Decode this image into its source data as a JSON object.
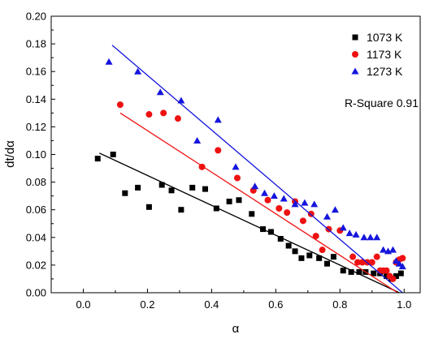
{
  "chart_data": {
    "type": "scatter",
    "xlabel": "α",
    "ylabel": "dt/dα",
    "xlim": [
      -0.1,
      1.05
    ],
    "ylim": [
      0,
      0.2
    ],
    "xticks": [
      0.0,
      0.2,
      0.4,
      0.6,
      0.8,
      1.0
    ],
    "xtick_labels": [
      "0.0",
      "0.2",
      "0.4",
      "0.6",
      "0.8",
      "1.0"
    ],
    "yticks": [
      0.0,
      0.02,
      0.04,
      0.06,
      0.08,
      0.1,
      0.12,
      0.14,
      0.16,
      0.18,
      0.2
    ],
    "ytick_labels": [
      "0.00",
      "0.02",
      "0.04",
      "0.06",
      "0.08",
      "0.10",
      "0.12",
      "0.14",
      "0.16",
      "0.18",
      "0.20"
    ],
    "grid": false,
    "legend_position": "top-right",
    "annotation": "R-Square 0.91",
    "series": [
      {
        "name": "1073 K",
        "marker": "square",
        "color": "#000000",
        "points": [
          [
            0.045,
            0.097
          ],
          [
            0.093,
            0.1
          ],
          [
            0.13,
            0.072
          ],
          [
            0.17,
            0.076
          ],
          [
            0.205,
            0.062
          ],
          [
            0.245,
            0.078
          ],
          [
            0.275,
            0.074
          ],
          [
            0.305,
            0.06
          ],
          [
            0.34,
            0.076
          ],
          [
            0.38,
            0.075
          ],
          [
            0.415,
            0.061
          ],
          [
            0.455,
            0.066
          ],
          [
            0.485,
            0.067
          ],
          [
            0.525,
            0.057
          ],
          [
            0.56,
            0.046
          ],
          [
            0.585,
            0.044
          ],
          [
            0.615,
            0.039
          ],
          [
            0.64,
            0.034
          ],
          [
            0.66,
            0.03
          ],
          [
            0.68,
            0.025
          ],
          [
            0.705,
            0.027
          ],
          [
            0.735,
            0.025
          ],
          [
            0.76,
            0.021
          ],
          [
            0.78,
            0.026
          ],
          [
            0.81,
            0.016
          ],
          [
            0.835,
            0.015
          ],
          [
            0.86,
            0.015
          ],
          [
            0.88,
            0.015
          ],
          [
            0.905,
            0.014
          ],
          [
            0.925,
            0.014
          ],
          [
            0.945,
            0.012
          ],
          [
            0.96,
            0.01
          ],
          [
            0.975,
            0.012
          ],
          [
            0.99,
            0.014
          ]
        ],
        "fit": [
          [
            0.05,
            0.101
          ],
          [
            0.985,
            0.0
          ]
        ]
      },
      {
        "name": "1173 K",
        "marker": "circle",
        "color": "#ee1111",
        "points": [
          [
            0.115,
            0.136
          ],
          [
            0.205,
            0.129
          ],
          [
            0.25,
            0.13
          ],
          [
            0.295,
            0.126
          ],
          [
            0.37,
            0.091
          ],
          [
            0.42,
            0.103
          ],
          [
            0.48,
            0.083
          ],
          [
            0.53,
            0.074
          ],
          [
            0.575,
            0.067
          ],
          [
            0.61,
            0.061
          ],
          [
            0.635,
            0.058
          ],
          [
            0.66,
            0.066
          ],
          [
            0.685,
            0.052
          ],
          [
            0.71,
            0.057
          ],
          [
            0.725,
            0.041
          ],
          [
            0.745,
            0.031
          ],
          [
            0.765,
            0.046
          ],
          [
            0.8,
            0.045
          ],
          [
            0.84,
            0.026
          ],
          [
            0.855,
            0.022
          ],
          [
            0.87,
            0.022
          ],
          [
            0.885,
            0.022
          ],
          [
            0.9,
            0.022
          ],
          [
            0.915,
            0.026
          ],
          [
            0.925,
            0.016
          ],
          [
            0.935,
            0.016
          ],
          [
            0.945,
            0.016
          ],
          [
            0.955,
            0.012
          ],
          [
            0.965,
            0.01
          ],
          [
            0.975,
            0.022
          ],
          [
            0.985,
            0.024
          ],
          [
            0.995,
            0.025
          ]
        ],
        "fit": [
          [
            0.115,
            0.13
          ],
          [
            0.98,
            0.0
          ]
        ]
      },
      {
        "name": "1273 K",
        "marker": "triangle",
        "color": "#1515dd",
        "points": [
          [
            0.08,
            0.167
          ],
          [
            0.17,
            0.16
          ],
          [
            0.24,
            0.145
          ],
          [
            0.305,
            0.139
          ],
          [
            0.355,
            0.11
          ],
          [
            0.42,
            0.125
          ],
          [
            0.475,
            0.091
          ],
          [
            0.535,
            0.077
          ],
          [
            0.565,
            0.072
          ],
          [
            0.595,
            0.07
          ],
          [
            0.625,
            0.068
          ],
          [
            0.66,
            0.064
          ],
          [
            0.69,
            0.065
          ],
          [
            0.72,
            0.064
          ],
          [
            0.76,
            0.055
          ],
          [
            0.785,
            0.06
          ],
          [
            0.81,
            0.047
          ],
          [
            0.83,
            0.043
          ],
          [
            0.85,
            0.042
          ],
          [
            0.875,
            0.04
          ],
          [
            0.895,
            0.04
          ],
          [
            0.915,
            0.04
          ],
          [
            0.935,
            0.031
          ],
          [
            0.95,
            0.03
          ],
          [
            0.965,
            0.031
          ],
          [
            0.975,
            0.023
          ],
          [
            0.985,
            0.021
          ],
          [
            0.995,
            0.019
          ]
        ],
        "fit": [
          [
            0.09,
            0.179
          ],
          [
            0.995,
            0.0
          ]
        ]
      }
    ]
  }
}
